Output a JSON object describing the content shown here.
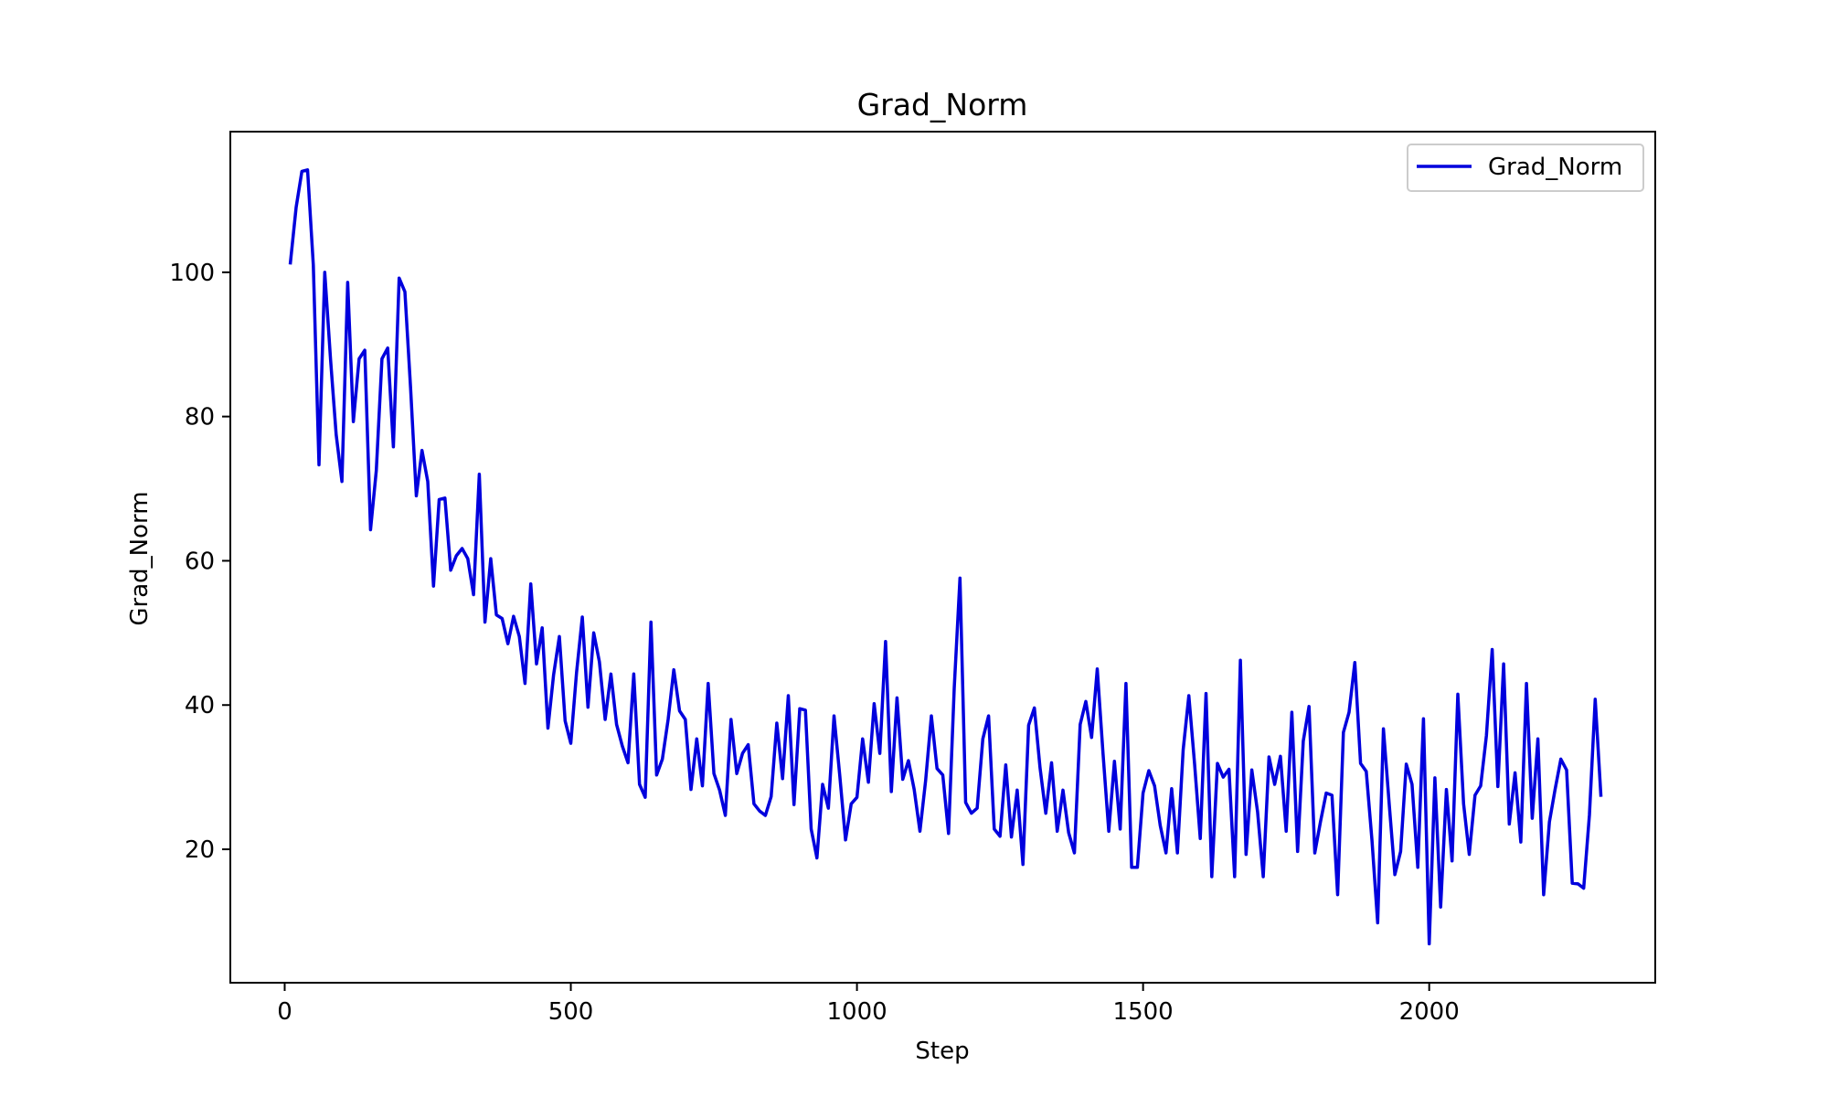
{
  "chart_data": {
    "type": "line",
    "title": "Grad_Norm",
    "xlabel": "Step",
    "ylabel": "Grad_Norm",
    "xlim": [
      -95,
      2395
    ],
    "ylim": [
      1.5,
      119.5
    ],
    "xticks": [
      0,
      500,
      1000,
      1500,
      2000
    ],
    "yticks": [
      20,
      40,
      60,
      80,
      100
    ],
    "grid": false,
    "legend": {
      "position": "top-right",
      "entries": [
        "Grad_Norm"
      ]
    },
    "series": [
      {
        "name": "Grad_Norm",
        "color": "#0000dd",
        "x": [
          10,
          20,
          30,
          40,
          50,
          60,
          70,
          80,
          90,
          100,
          110,
          120,
          130,
          140,
          150,
          160,
          170,
          180,
          190,
          200,
          210,
          220,
          230,
          240,
          250,
          260,
          270,
          280,
          290,
          300,
          310,
          320,
          330,
          340,
          350,
          360,
          370,
          380,
          390,
          400,
          410,
          420,
          430,
          440,
          450,
          460,
          470,
          480,
          490,
          500,
          510,
          520,
          530,
          540,
          550,
          560,
          570,
          580,
          590,
          600,
          610,
          620,
          630,
          640,
          650,
          660,
          670,
          680,
          690,
          700,
          710,
          720,
          730,
          740,
          750,
          760,
          770,
          780,
          790,
          800,
          810,
          820,
          830,
          840,
          850,
          860,
          870,
          880,
          890,
          900,
          910,
          920,
          930,
          940,
          950,
          960,
          970,
          980,
          990,
          1000,
          1010,
          1020,
          1030,
          1040,
          1050,
          1060,
          1070,
          1080,
          1090,
          1100,
          1110,
          1120,
          1130,
          1140,
          1150,
          1160,
          1170,
          1180,
          1190,
          1200,
          1210,
          1220,
          1230,
          1240,
          1250,
          1260,
          1270,
          1280,
          1290,
          1300,
          1310,
          1320,
          1330,
          1340,
          1350,
          1360,
          1370,
          1380,
          1390,
          1400,
          1410,
          1420,
          1430,
          1440,
          1450,
          1460,
          1470,
          1480,
          1490,
          1500,
          1510,
          1520,
          1530,
          1540,
          1550,
          1560,
          1570,
          1580,
          1590,
          1600,
          1610,
          1620,
          1630,
          1640,
          1650,
          1660,
          1670,
          1680,
          1690,
          1700,
          1710,
          1720,
          1730,
          1740,
          1750,
          1760,
          1770,
          1780,
          1790,
          1800,
          1810,
          1820,
          1830,
          1840,
          1850,
          1860,
          1870,
          1880,
          1890,
          1900,
          1910,
          1920,
          1930,
          1940,
          1950,
          1960,
          1970,
          1980,
          1990,
          2000,
          2010,
          2020,
          2030,
          2040,
          2050,
          2060,
          2070,
          2080,
          2090,
          2100,
          2110,
          2120,
          2130,
          2140,
          2150,
          2160,
          2170,
          2180,
          2190,
          2200,
          2210,
          2220,
          2230,
          2240,
          2250,
          2260,
          2270,
          2280,
          2290,
          2300
        ],
        "y": [
          101.3,
          109,
          114,
          114.2,
          101,
          73.3,
          100,
          88,
          77.5,
          71,
          98.6,
          79.3,
          88,
          89.2,
          64.3,
          72.5,
          88,
          89.5,
          75.8,
          99.2,
          97.3,
          84,
          69,
          75.3,
          71,
          56.5,
          68.5,
          68.7,
          58.7,
          60.7,
          61.7,
          60.3,
          55.3,
          72,
          51.5,
          60.3,
          52.5,
          52,
          48.5,
          52.3,
          49.5,
          43,
          56.8,
          45.7,
          50.7,
          36.8,
          44.2,
          49.5,
          37.8,
          34.7,
          44.5,
          52.2,
          39.7,
          50,
          46,
          38,
          44.3,
          37.3,
          34.3,
          32,
          44.3,
          29,
          27.2,
          51.5,
          30.3,
          32.5,
          38,
          44.9,
          39.2,
          38,
          28.3,
          35.3,
          28.8,
          43,
          30.5,
          28.2,
          24.7,
          38,
          30.5,
          33.3,
          34.5,
          26.3,
          25.3,
          24.7,
          27.3,
          37.5,
          29.8,
          41.3,
          26.2,
          39.5,
          39.3,
          22.8,
          18.8,
          29,
          25.7,
          38.5,
          30.2,
          21.3,
          26.3,
          27.2,
          35.3,
          29.3,
          40.2,
          33.3,
          48.8,
          28,
          41,
          29.7,
          32.3,
          28.3,
          22.5,
          29.5,
          38.5,
          31.2,
          30.3,
          22.2,
          42.3,
          57.6,
          26.5,
          25,
          25.7,
          35.3,
          38.5,
          22.8,
          21.8,
          31.7,
          21.7,
          28.2,
          17.9,
          37.2,
          39.6,
          31.3,
          25,
          32,
          22.5,
          28.2,
          22.3,
          19.5,
          37.3,
          40.5,
          35.5,
          45,
          33.3,
          22.5,
          32.2,
          22.8,
          43,
          17.5,
          17.5,
          27.8,
          30.9,
          28.8,
          23.3,
          19.5,
          28.4,
          19.5,
          33.8,
          41.3,
          31.8,
          21.5,
          41.6,
          16.2,
          31.9,
          30,
          31.1,
          16.2,
          46.2,
          19.3,
          31,
          25.2,
          16.2,
          32.8,
          29,
          32.9,
          22.5,
          39,
          19.7,
          35,
          39.8,
          19.5,
          23.8,
          27.8,
          27.5,
          13.7,
          36.2,
          39,
          45.9,
          31.9,
          30.8,
          21.2,
          9.8,
          36.7,
          26.3,
          16.5,
          19.7,
          31.8,
          29,
          17.5,
          38.1,
          6.9,
          29.9,
          12,
          28.3,
          18.4,
          41.5,
          26.3,
          19.3,
          27.5,
          28.8,
          35.8,
          47.7,
          28.7,
          45.7,
          23.5,
          30.6,
          21,
          43,
          24.3,
          35.3,
          13.7,
          23.8,
          28.3,
          32.5,
          31,
          15.3,
          15.2,
          14.6,
          24.8,
          40.8,
          27.5
        ]
      }
    ]
  }
}
